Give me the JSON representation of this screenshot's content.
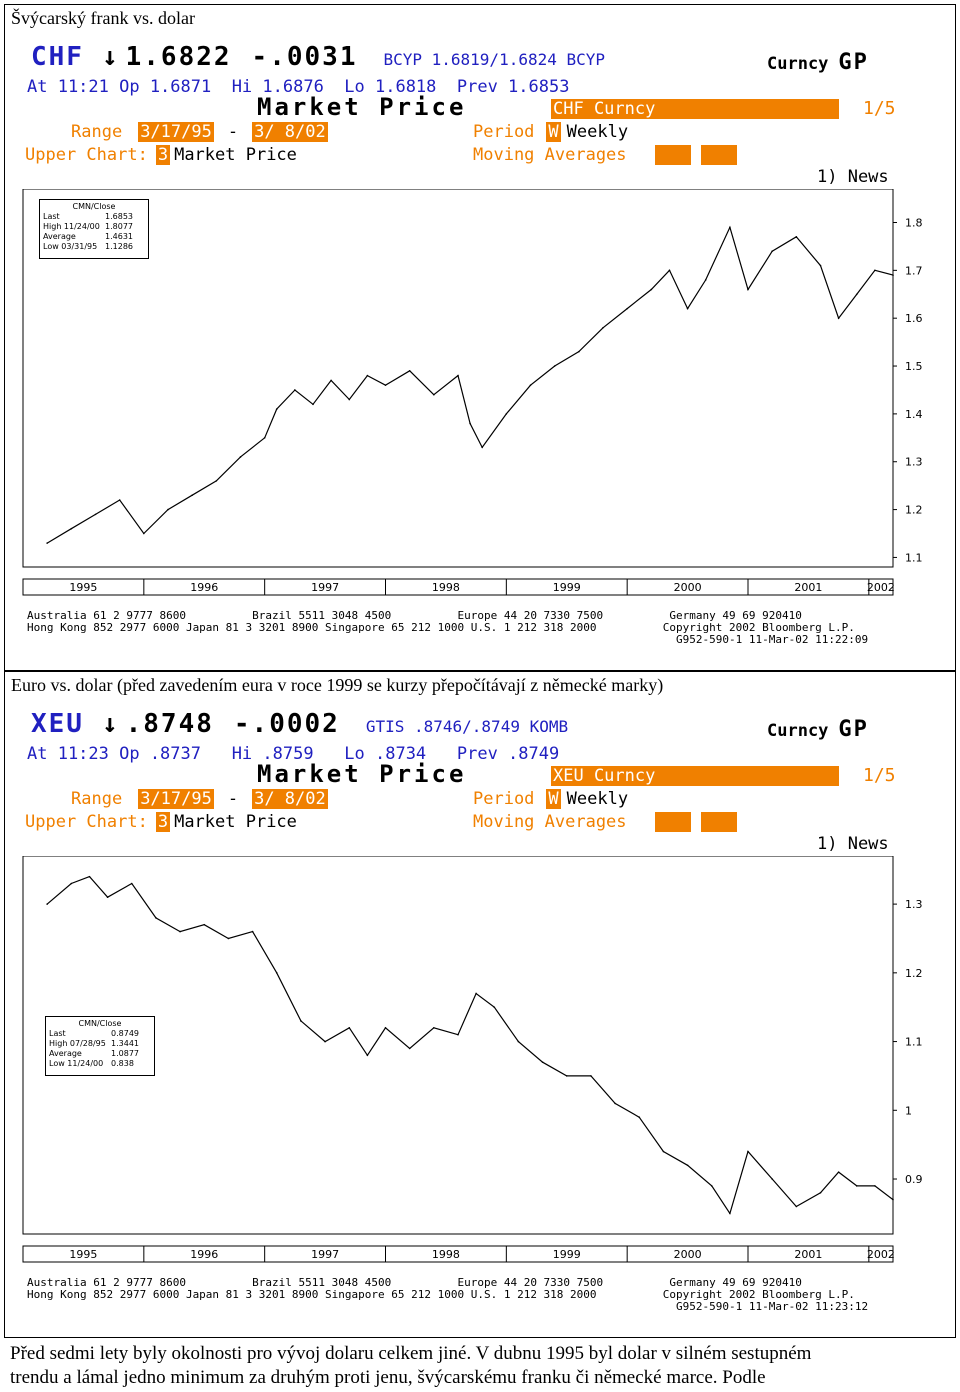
{
  "panels": [
    {
      "caption": "Švýcarský frank vs. dolar",
      "ticker": "CHF",
      "arrow": "↓",
      "price": "1.6822",
      "change": "-.0031",
      "source": "BCYP 1.6819/1.6824 BCYP",
      "curncy_label": "Curncy",
      "gp": "GP",
      "line2": "At 11:21 Op 1.6871  Hi 1.6876  Lo 1.6818  Prev 1.6853",
      "mp_title": "Market Price",
      "security": "CHF Curncy",
      "page": "1/5",
      "range_label": "Range",
      "range_from": "3/17/95",
      "range_dash": "-",
      "range_to": "3/ 8/02",
      "period_label": "Period",
      "period_code": "W",
      "period_value": "Weekly",
      "upper_label": "Upper Chart:",
      "upper_code": "3",
      "upper_value": "Market Price",
      "ma_label": "Moving Averages",
      "news": "1) News",
      "stats": {
        "title": "CMN/Close",
        "rows": [
          {
            "label": "Last",
            "value": "1.6853"
          },
          {
            "label": "High 11/24/00",
            "value": "1.8077"
          },
          {
            "label": "Average",
            "value": "1.4631"
          },
          {
            "label": "Low 03/31/95",
            "value": "1.1286"
          }
        ]
      },
      "footer": [
        "Australia 61 2 9777 8600          Brazil 5511 3048 4500          Europe 44 20 7330 7500          Germany 49 69 920410",
        "Hong Kong 852 2977 6000 Japan 81 3 3201 8900 Singapore 65 212 1000 U.S. 1 212 318 2000          Copyright 2002 Bloomberg L.P.",
        "                                                                                                  G952-590-1 11-Mar-02 11:22:09"
      ],
      "chart_data": {
        "type": "line",
        "x_labels": [
          "1995",
          "1996",
          "1997",
          "1998",
          "1999",
          "2000",
          "2001",
          "2002"
        ],
        "y_ticks": [
          1.1,
          1.2,
          1.3,
          1.4,
          1.5,
          1.6,
          1.7,
          1.8
        ],
        "ylim": [
          1.08,
          1.87
        ],
        "x": [
          1995.2,
          1995.4,
          1995.6,
          1995.8,
          1996.0,
          1996.2,
          1996.4,
          1996.6,
          1996.8,
          1997.0,
          1997.1,
          1997.25,
          1997.4,
          1997.55,
          1997.7,
          1997.85,
          1998.0,
          1998.2,
          1998.4,
          1998.6,
          1998.7,
          1998.8,
          1999.0,
          1999.2,
          1999.4,
          1999.6,
          1999.8,
          2000.0,
          2000.2,
          2000.35,
          2000.5,
          2000.65,
          2000.85,
          2001.0,
          2001.2,
          2001.4,
          2001.6,
          2001.75,
          2001.9,
          2002.05,
          2002.2
        ],
        "values": [
          1.13,
          1.16,
          1.19,
          1.22,
          1.15,
          1.2,
          1.23,
          1.26,
          1.31,
          1.35,
          1.41,
          1.45,
          1.42,
          1.47,
          1.43,
          1.48,
          1.46,
          1.49,
          1.44,
          1.48,
          1.38,
          1.33,
          1.4,
          1.46,
          1.5,
          1.53,
          1.58,
          1.62,
          1.66,
          1.7,
          1.62,
          1.68,
          1.79,
          1.66,
          1.74,
          1.77,
          1.71,
          1.6,
          1.65,
          1.7,
          1.69
        ]
      }
    },
    {
      "caption": "Euro vs. dolar (před zavedením eura v roce 1999 se kurzy přepočítávají z německé marky)",
      "ticker": "XEU",
      "arrow": "↓",
      "price": ".8748",
      "change": "-.0002",
      "source": "GTIS .8746/.8749 KOMB",
      "curncy_label": "Curncy",
      "gp": "GP",
      "line2": "At 11:23 Op .8737   Hi .8759   Lo .8734   Prev .8749",
      "mp_title": "Market Price",
      "security": "XEU Curncy",
      "page": "1/5",
      "range_label": "Range",
      "range_from": "3/17/95",
      "range_dash": "-",
      "range_to": "3/ 8/02",
      "period_label": "Period",
      "period_code": "W",
      "period_value": "Weekly",
      "upper_label": "Upper Chart:",
      "upper_code": "3",
      "upper_value": "Market Price",
      "ma_label": "Moving Averages",
      "news": "1) News",
      "stats": {
        "title": "CMN/Close",
        "rows": [
          {
            "label": "Last",
            "value": "0.8749"
          },
          {
            "label": "High 07/28/95",
            "value": "1.3441"
          },
          {
            "label": "Average",
            "value": "1.0877"
          },
          {
            "label": "Low 11/24/00",
            "value": "0.838"
          }
        ]
      },
      "footer": [
        "Australia 61 2 9777 8600          Brazil 5511 3048 4500          Europe 44 20 7330 7500          Germany 49 69 920410",
        "Hong Kong 852 2977 6000 Japan 81 3 3201 8900 Singapore 65 212 1000 U.S. 1 212 318 2000          Copyright 2002 Bloomberg L.P.",
        "                                                                                                  G952-590-1 11-Mar-02 11:23:12"
      ],
      "chart_data": {
        "type": "line",
        "x_labels": [
          "1995",
          "1996",
          "1997",
          "1998",
          "1999",
          "2000",
          "2001",
          "2002"
        ],
        "y_ticks": [
          0.9,
          1.0,
          1.1,
          1.2,
          1.3
        ],
        "ylim": [
          0.82,
          1.37
        ],
        "x": [
          1995.2,
          1995.4,
          1995.55,
          1995.7,
          1995.9,
          1996.1,
          1996.3,
          1996.5,
          1996.7,
          1996.9,
          1997.1,
          1997.3,
          1997.5,
          1997.7,
          1997.85,
          1998.0,
          1998.2,
          1998.4,
          1998.6,
          1998.75,
          1998.9,
          1999.1,
          1999.3,
          1999.5,
          1999.7,
          1999.9,
          2000.1,
          2000.3,
          2000.5,
          2000.7,
          2000.85,
          2001.0,
          2001.2,
          2001.4,
          2001.6,
          2001.75,
          2001.9,
          2002.05,
          2002.2
        ],
        "values": [
          1.3,
          1.33,
          1.34,
          1.31,
          1.33,
          1.28,
          1.26,
          1.27,
          1.25,
          1.26,
          1.2,
          1.13,
          1.1,
          1.12,
          1.08,
          1.12,
          1.09,
          1.12,
          1.11,
          1.17,
          1.15,
          1.1,
          1.07,
          1.05,
          1.05,
          1.01,
          0.99,
          0.94,
          0.92,
          0.89,
          0.85,
          0.94,
          0.9,
          0.86,
          0.88,
          0.91,
          0.89,
          0.89,
          0.87
        ]
      }
    }
  ],
  "paragraph": [
    "Před sedmi lety byly okolnosti pro vývoj dolaru celkem jiné. V dubnu 1995 byl dolar v silném sestupném",
    "trendu a lámal jedno minimum za druhým proti jenu, švýcarskému franku či německé marce. Podle"
  ]
}
